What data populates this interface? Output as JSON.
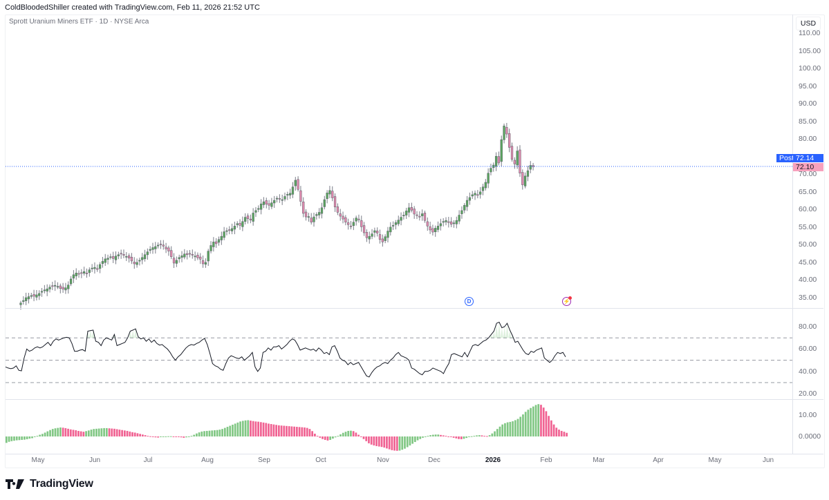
{
  "header": {
    "text": "ColdBloodedShiller created with TradingView.com, Feb 11, 2026 21:52 UTC"
  },
  "chart": {
    "title": "Sprott Uranium Miners ETF · 1D · NYSE Arca",
    "currency": "USD",
    "post_label": "Post",
    "post_price": "72.14",
    "last_price": "72.10",
    "colors": {
      "up": "#4caf50",
      "down": "#e57fa8",
      "up_body": "#5aa55e",
      "down_body": "#e08aae",
      "wick": "#787b86",
      "post_bg": "#2962ff",
      "last_bg": "#f7a1bd",
      "rsi_line": "#131722",
      "hist_up": "#81c784",
      "hist_down": "#f06292"
    },
    "event_markers": [
      {
        "icon": "dividend-d-icon",
        "label": "D"
      },
      {
        "icon": "earnings-flash-icon",
        "label": "⚡"
      }
    ]
  },
  "logo": {
    "text": "TradingView"
  },
  "chart_data": [
    {
      "type": "candlestick",
      "title": "Sprott Uranium Miners ETF · 1D · NYSE Arca",
      "ylabel": "USD",
      "ylim": [
        33,
        112
      ],
      "y_ticks": [
        "110.00",
        "105.00",
        "100.00",
        "95.00",
        "90.00",
        "85.00",
        "80.00",
        "75.00",
        "70.00",
        "65.00",
        "60.00",
        "55.00",
        "50.00",
        "45.00",
        "40.00",
        "35.00"
      ],
      "x_ticks": [
        "May",
        "Jun",
        "Jul",
        "Aug",
        "Sep",
        "Oct",
        "Nov",
        "Dec",
        "2026",
        "Feb",
        "Mar",
        "Apr",
        "May",
        "Jun"
      ],
      "last_price": 72.1,
      "post_market": 72.14,
      "closes": [
        33.5,
        34.2,
        35.0,
        35.3,
        35.6,
        35.4,
        35.8,
        36.2,
        36.8,
        37.2,
        37.5,
        38.0,
        38.3,
        38.5,
        38.2,
        37.6,
        37.4,
        37.8,
        38.6,
        40.3,
        41.5,
        42.0,
        41.7,
        41.9,
        42.4,
        42.0,
        42.9,
        43.4,
        43.6,
        43.0,
        44.4,
        45.3,
        46.0,
        46.2,
        46.6,
        46.1,
        46.8,
        47.2,
        47.4,
        47.0,
        46.7,
        46.2,
        45.4,
        44.6,
        45.0,
        45.6,
        46.4,
        47.2,
        48.0,
        48.7,
        49.2,
        49.5,
        49.9,
        50.2,
        49.6,
        48.8,
        48.2,
        46.6,
        44.8,
        45.6,
        46.4,
        46.9,
        47.4,
        47.2,
        47.5,
        47.1,
        46.8,
        46.3,
        45.9,
        44.6,
        45.0,
        48.2,
        49.8,
        50.8,
        50.3,
        51.5,
        52.4,
        53.7,
        54.0,
        54.2,
        54.6,
        55.3,
        56.0,
        55.5,
        56.6,
        57.8,
        57.4,
        57.0,
        59.0,
        59.7,
        60.3,
        61.6,
        62.2,
        61.5,
        61.2,
        61.9,
        62.6,
        63.2,
        63.0,
        62.8,
        63.7,
        64.3,
        64.6,
        66.4,
        68.3,
        65.7,
        62.3,
        58.9,
        57.9,
        58.0,
        56.4,
        57.9,
        58.6,
        59.2,
        60.5,
        62.8,
        64.7,
        65.4,
        63.3,
        60.7,
        59.2,
        58.1,
        57.3,
        56.4,
        55.7,
        55.2,
        56.4,
        57.6,
        57.1,
        55.1,
        53.4,
        52.0,
        52.4,
        53.1,
        54.0,
        53.3,
        51.5,
        50.8,
        52.3,
        53.9,
        55.0,
        55.5,
        56.3,
        57.0,
        57.8,
        58.4,
        59.6,
        60.5,
        59.8,
        58.7,
        58.4,
        57.9,
        58.8,
        56.9,
        55.3,
        54.2,
        53.6,
        54.7,
        55.3,
        56.0,
        56.6,
        56.9,
        56.3,
        55.8,
        56.2,
        56.9,
        58.4,
        59.7,
        61.2,
        62.6,
        63.4,
        64.2,
        64.6,
        64.1,
        65.0,
        66.4,
        67.7,
        70.3,
        71.7,
        72.6,
        75.1,
        73.2,
        79.8,
        83.7,
        81.4,
        77.6,
        74.2,
        72.9,
        76.6,
        70.3,
        67.0,
        69.5,
        71.0,
        72.5,
        72.1
      ]
    },
    {
      "type": "line",
      "title": "RSI",
      "ylim": [
        15,
        90
      ],
      "y_ticks": [
        "80.00",
        "60.00",
        "40.00",
        "20.00"
      ],
      "bands": [
        70,
        50,
        30
      ],
      "values": [
        44,
        43,
        42.5,
        43,
        45,
        41,
        40.5,
        52,
        60,
        58,
        59,
        61,
        62,
        61,
        62,
        64,
        66,
        63,
        67,
        69,
        68,
        69,
        70,
        70.5,
        70,
        65,
        58,
        58,
        59,
        59.5,
        58,
        76,
        76.5,
        77,
        67,
        66,
        63,
        68,
        70,
        69,
        68,
        73,
        63,
        64,
        65,
        66,
        70,
        76,
        77,
        78,
        71,
        69,
        70,
        67,
        69,
        66,
        68,
        65,
        63.5,
        64,
        62,
        60,
        57,
        53,
        50,
        53,
        55,
        58,
        61,
        63,
        64,
        63.5,
        65,
        66,
        68,
        69.5,
        64,
        56,
        47,
        45,
        44,
        42,
        41,
        47,
        52,
        54,
        53,
        52,
        51.5,
        53,
        50,
        52,
        54,
        57,
        44,
        40,
        43,
        57,
        58,
        61,
        59,
        62,
        62,
        63,
        60,
        62,
        64,
        67,
        69,
        68,
        64,
        59,
        60,
        61,
        60,
        59,
        60,
        58,
        61,
        59,
        56,
        57,
        55,
        62,
        63,
        58,
        52,
        50,
        49,
        46,
        48,
        46,
        47,
        48,
        44,
        40,
        36,
        35,
        39,
        42,
        44,
        45,
        47,
        48,
        47,
        50,
        52,
        55,
        57,
        54,
        53,
        52,
        50,
        43,
        42,
        40,
        38,
        37,
        40,
        40,
        41,
        43,
        42,
        41,
        40,
        38,
        43,
        47,
        55,
        56,
        55,
        54,
        53,
        57,
        53,
        58,
        63,
        64,
        63,
        65,
        67,
        68,
        70,
        73,
        76,
        83,
        84,
        79,
        80,
        83,
        77,
        72,
        66,
        67,
        63,
        59,
        56,
        55,
        58,
        57,
        59,
        60,
        61,
        52,
        50,
        48,
        50,
        54,
        57,
        56,
        57,
        53
      ],
      "rsi_values_count_note": null
    },
    {
      "type": "bar",
      "title": "Momentum histogram",
      "ylim": [
        -8,
        16
      ],
      "y_ticks": [
        "10.00",
        "0.0000"
      ],
      "values": [
        -3.0,
        -2.5,
        -2.2,
        -2.0,
        -1.8,
        -1.7,
        -1.6,
        -1.5,
        -1.3,
        -1.0,
        -0.8,
        -0.3,
        0.3,
        0.8,
        1.2,
        1.8,
        2.4,
        3.0,
        3.5,
        3.8,
        4.0,
        4.2,
        4.1,
        3.9,
        3.6,
        3.3,
        3.1,
        2.9,
        2.6,
        2.4,
        2.2,
        2.5,
        2.8,
        3.2,
        3.5,
        3.6,
        3.7,
        3.8,
        3.9,
        3.9,
        3.8,
        3.7,
        3.6,
        3.4,
        3.2,
        3.0,
        2.8,
        2.6,
        2.3,
        2.0,
        1.8,
        1.5,
        1.2,
        0.9,
        0.6,
        0.3,
        0.1,
        -0.2,
        -0.4,
        -0.5,
        -0.3,
        -0.1,
        0.0,
        0.1,
        0.1,
        0.0,
        -0.1,
        -0.2,
        -0.4,
        -0.6,
        -0.4,
        -0.1,
        0.3,
        0.8,
        1.4,
        1.9,
        2.3,
        2.5,
        2.6,
        2.7,
        2.8,
        2.9,
        3.0,
        3.2,
        3.5,
        4.0,
        4.5,
        5.0,
        5.5,
        6.0,
        6.5,
        7.0,
        7.3,
        7.5,
        7.6,
        7.4,
        7.2,
        7.0,
        6.9,
        6.7,
        6.5,
        6.3,
        6.0,
        5.8,
        5.6,
        5.4,
        5.2,
        5.1,
        5.0,
        4.9,
        4.8,
        4.7,
        4.6,
        4.5,
        4.4,
        4.3,
        4.2,
        4.0,
        3.5,
        2.5,
        1.3,
        0.3,
        -0.6,
        -1.2,
        -1.6,
        -1.9,
        -1.6,
        -1.0,
        -0.4,
        0.3,
        1.0,
        1.7,
        2.2,
        2.6,
        2.7,
        2.5,
        1.8,
        0.8,
        -0.2,
        -1.2,
        -2.2,
        -3.2,
        -3.8,
        -4.2,
        -4.5,
        -4.7,
        -4.9,
        -5.2,
        -5.6,
        -6.0,
        -6.4,
        -6.6,
        -6.7,
        -6.6,
        -6.2,
        -5.7,
        -5.0,
        -4.2,
        -3.4,
        -2.6,
        -1.8,
        -1.2,
        -0.6,
        -0.1,
        0.3,
        0.6,
        0.8,
        0.9,
        0.9,
        0.7,
        0.5,
        0.3,
        0.0,
        -0.3,
        -0.6,
        -0.9,
        -1.2,
        -1.3,
        -1.1,
        -0.7,
        -0.3,
        0.1,
        0.3,
        0.5,
        0.6,
        0.5,
        0.3,
        0.2,
        0.6,
        1.4,
        2.4,
        3.5,
        4.6,
        5.6,
        6.2,
        6.6,
        6.8,
        7.1,
        7.6,
        8.2,
        9.2,
        10.3,
        11.5,
        12.5,
        13.3,
        14.0,
        14.7,
        15.1,
        14.8,
        13.5,
        11.8,
        9.6,
        7.5,
        5.6,
        4.1,
        3.2,
        2.6,
        2.2,
        1.7
      ]
    }
  ]
}
